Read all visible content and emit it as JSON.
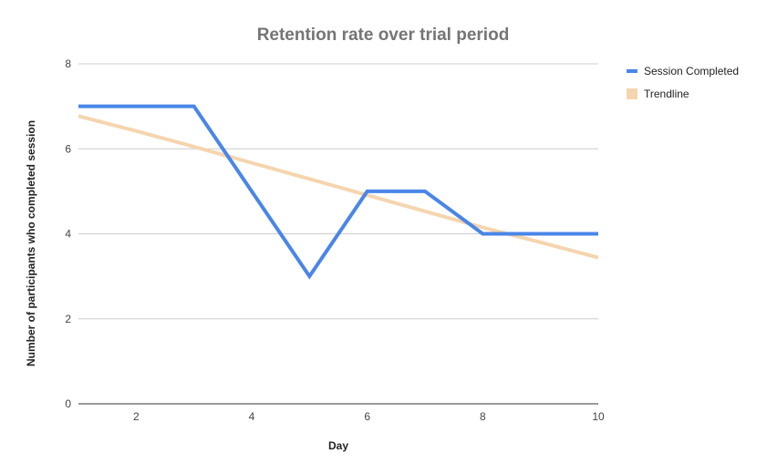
{
  "chart_data": {
    "type": "line",
    "title": "Retention rate over trial period",
    "xlabel": "Day",
    "ylabel": "Number of participants who completed session",
    "xlim": [
      1,
      10
    ],
    "ylim": [
      0,
      8
    ],
    "x_ticks": [
      2,
      4,
      6,
      8,
      10
    ],
    "y_ticks": [
      0,
      2,
      4,
      6,
      8
    ],
    "grid": true,
    "legend_position": "right",
    "x": [
      1,
      2,
      3,
      4,
      5,
      6,
      7,
      8,
      9,
      10
    ],
    "series": [
      {
        "name": "Session Completed",
        "color": "#4a86e8",
        "values": [
          7,
          7,
          7,
          5,
          3,
          5,
          5,
          4,
          4,
          4
        ]
      },
      {
        "name": "Trendline",
        "color": "#f5d5ae",
        "type": "linear-trendline",
        "values": [
          6.77,
          6.42,
          6.05,
          5.67,
          5.29,
          4.91,
          4.53,
          4.15,
          3.8,
          3.44
        ]
      }
    ]
  }
}
